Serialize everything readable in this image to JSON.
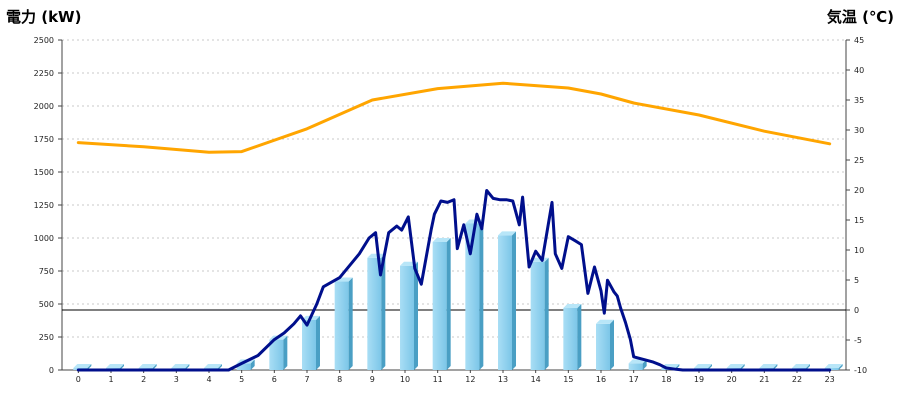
{
  "chart_data": {
    "type": "bar+line",
    "left_axis": {
      "title": "電力 (kW)",
      "title_color": "#1e73b8",
      "range": [
        0,
        2500
      ],
      "tick_labels": [
        "0",
        "250",
        "500",
        "750",
        "1000",
        "1250",
        "1500",
        "1750",
        "2000",
        "2250",
        "2500"
      ]
    },
    "right_axis": {
      "title": "気温 (℃)",
      "title_color": "#f07820",
      "range": [
        -10,
        45
      ],
      "tick_labels": [
        "-10",
        "-5",
        "0",
        "5",
        "10",
        "15",
        "20",
        "25",
        "30",
        "35",
        "40",
        "45"
      ]
    },
    "categories": [
      "0",
      "1",
      "2",
      "3",
      "4",
      "5",
      "6",
      "7",
      "8",
      "9",
      "10",
      "11",
      "12",
      "13",
      "14",
      "15",
      "16",
      "17",
      "18",
      "19",
      "20",
      "21",
      "22",
      "23"
    ],
    "grid": true,
    "reference_line": {
      "axis": "right",
      "value": 0,
      "color": "#000000"
    },
    "series": [
      {
        "kind": "bar",
        "axis": "left",
        "color": "#87ceeb",
        "values": [
          15,
          15,
          15,
          15,
          15,
          50,
          230,
          380,
          670,
          850,
          790,
          970,
          1110,
          1020,
          820,
          470,
          350,
          50,
          15,
          15,
          15,
          15,
          15,
          15
        ]
      },
      {
        "kind": "line",
        "axis": "left",
        "color": "#000f8c",
        "points": [
          [
            0,
            0
          ],
          [
            1,
            0
          ],
          [
            2,
            0
          ],
          [
            3,
            0
          ],
          [
            4,
            0
          ],
          [
            4.6,
            0
          ],
          [
            5,
            50
          ],
          [
            5.5,
            110
          ],
          [
            6,
            230
          ],
          [
            6.3,
            280
          ],
          [
            6.6,
            350
          ],
          [
            6.8,
            410
          ],
          [
            7,
            340
          ],
          [
            7.3,
            500
          ],
          [
            7.5,
            630
          ],
          [
            8,
            700
          ],
          [
            8.3,
            790
          ],
          [
            8.6,
            880
          ],
          [
            8.9,
            1000
          ],
          [
            9.1,
            1040
          ],
          [
            9.25,
            720
          ],
          [
            9.5,
            1040
          ],
          [
            9.75,
            1090
          ],
          [
            9.9,
            1060
          ],
          [
            10.1,
            1160
          ],
          [
            10.3,
            770
          ],
          [
            10.5,
            650
          ],
          [
            10.8,
            1060
          ],
          [
            10.9,
            1180
          ],
          [
            11.1,
            1280
          ],
          [
            11.3,
            1270
          ],
          [
            11.5,
            1290
          ],
          [
            11.6,
            920
          ],
          [
            11.8,
            1100
          ],
          [
            12,
            880
          ],
          [
            12.2,
            1180
          ],
          [
            12.35,
            1070
          ],
          [
            12.5,
            1360
          ],
          [
            12.7,
            1300
          ],
          [
            12.9,
            1290
          ],
          [
            13.1,
            1290
          ],
          [
            13.3,
            1280
          ],
          [
            13.5,
            1100
          ],
          [
            13.6,
            1310
          ],
          [
            13.8,
            780
          ],
          [
            14,
            900
          ],
          [
            14.2,
            830
          ],
          [
            14.5,
            1270
          ],
          [
            14.6,
            880
          ],
          [
            14.8,
            770
          ],
          [
            15,
            1010
          ],
          [
            15.2,
            980
          ],
          [
            15.4,
            950
          ],
          [
            15.6,
            580
          ],
          [
            15.8,
            780
          ],
          [
            16,
            600
          ],
          [
            16.1,
            430
          ],
          [
            16.2,
            680
          ],
          [
            16.4,
            590
          ],
          [
            16.5,
            560
          ],
          [
            16.6,
            470
          ],
          [
            16.75,
            360
          ],
          [
            16.9,
            230
          ],
          [
            17,
            100
          ],
          [
            17.3,
            80
          ],
          [
            17.6,
            60
          ],
          [
            17.8,
            40
          ],
          [
            18,
            15
          ],
          [
            18.3,
            5
          ],
          [
            18.5,
            0
          ],
          [
            19,
            0
          ],
          [
            20,
            0
          ],
          [
            21,
            0
          ],
          [
            22,
            0
          ],
          [
            23,
            0
          ]
        ]
      },
      {
        "kind": "line",
        "axis": "right",
        "color": "#ffa500",
        "points": [
          [
            0,
            27.9
          ],
          [
            2,
            27.2
          ],
          [
            4,
            26.3
          ],
          [
            5,
            26.4
          ],
          [
            7,
            30.2
          ],
          [
            9,
            35
          ],
          [
            11,
            36.9
          ],
          [
            13,
            37.8
          ],
          [
            14,
            37.4
          ],
          [
            15,
            37
          ],
          [
            16,
            36
          ],
          [
            17,
            34.5
          ],
          [
            19,
            32.5
          ],
          [
            21,
            29.8
          ],
          [
            23,
            27.7
          ]
        ]
      }
    ]
  }
}
